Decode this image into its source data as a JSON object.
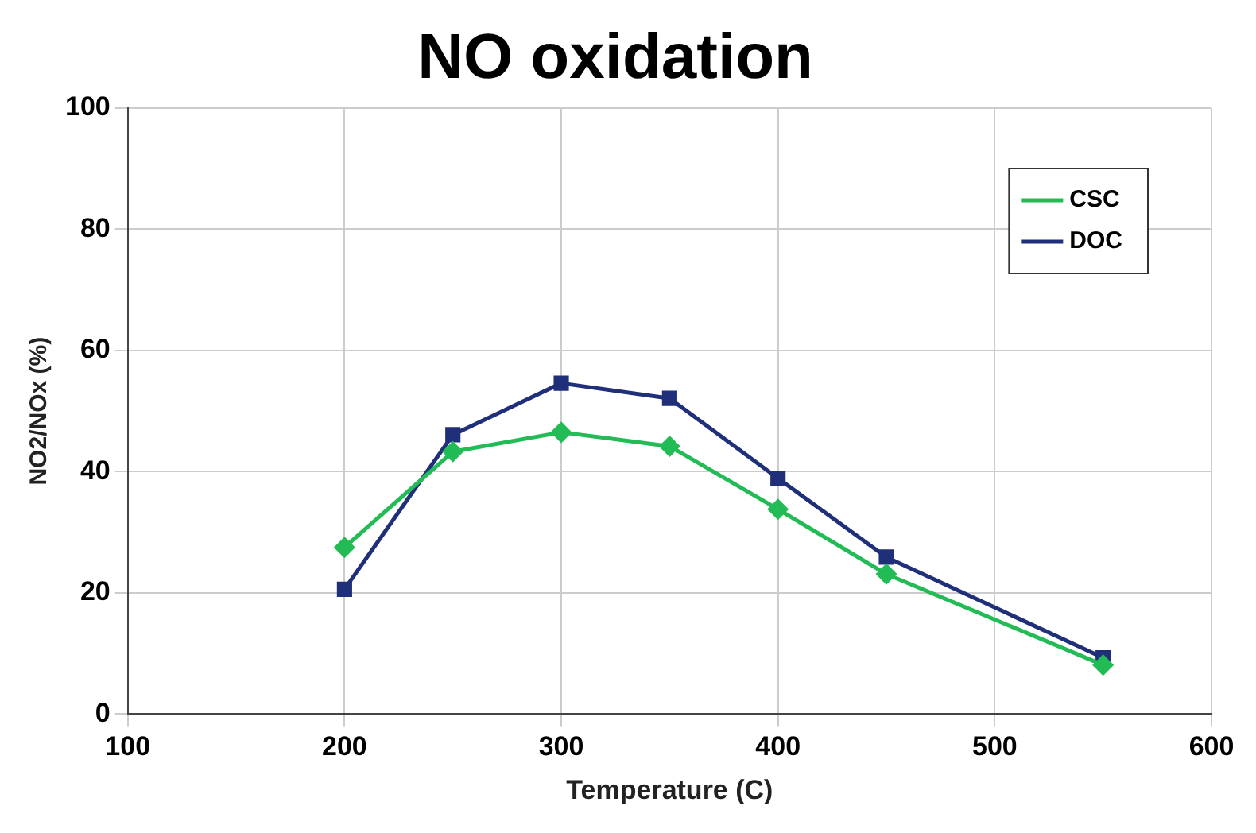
{
  "chart_data": {
    "type": "line",
    "title": "NO oxidation",
    "xlabel": "Temperature (C)",
    "ylabel": "NO2/NOx (%)",
    "x": [
      200,
      250,
      300,
      350,
      400,
      450,
      550
    ],
    "series": [
      {
        "name": "CSC",
        "color": "#22bb55",
        "marker": "diamond",
        "values": [
          27.5,
          43.3,
          46.5,
          44.2,
          33.8,
          23.1,
          8.1
        ]
      },
      {
        "name": "DOC",
        "color": "#1f2f7a",
        "marker": "square",
        "values": [
          20.6,
          46.1,
          54.6,
          52.1,
          38.9,
          25.9,
          9.3
        ]
      }
    ],
    "xlim": [
      100,
      600
    ],
    "xticks": [
      100,
      200,
      300,
      400,
      500,
      600
    ],
    "ylim": [
      0,
      100
    ],
    "yticks": [
      0,
      20,
      40,
      60,
      80,
      100
    ],
    "grid": true,
    "legend": "top right",
    "line_style": "solid"
  }
}
